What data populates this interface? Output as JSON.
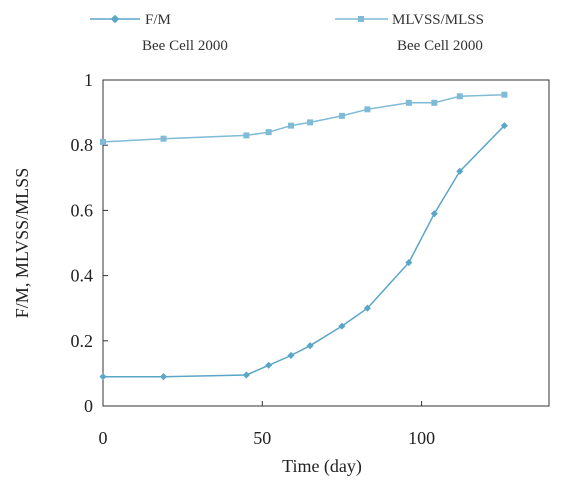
{
  "chart_data": {
    "type": "line",
    "xlabel": "Time (day)",
    "ylabel": "F/M, MLVSS/MLSS",
    "xlim": [
      0,
      140
    ],
    "ylim": [
      0,
      1
    ],
    "xticks": [
      "0",
      "50",
      "100"
    ],
    "yticks": [
      "0",
      "0.2",
      "0.4",
      "0.6",
      "0.8",
      "1"
    ],
    "grid": false,
    "legend_position": "top",
    "series": [
      {
        "name": "F/M",
        "subname": "Bee Cell 2000",
        "marker": "diamond",
        "color": "#5aa5c8",
        "x": [
          0,
          19,
          45,
          52,
          59,
          65,
          75,
          83,
          96,
          104,
          112,
          126
        ],
        "y": [
          0.09,
          0.09,
          0.095,
          0.125,
          0.155,
          0.185,
          0.245,
          0.3,
          0.44,
          0.59,
          0.72,
          0.86
        ]
      },
      {
        "name": "MLVSS/MLSS",
        "subname": "Bee Cell 2000",
        "marker": "square",
        "color": "#7fbad6",
        "x": [
          0,
          19,
          45,
          52,
          59,
          65,
          75,
          83,
          96,
          104,
          112,
          126
        ],
        "y": [
          0.81,
          0.82,
          0.83,
          0.84,
          0.86,
          0.87,
          0.89,
          0.91,
          0.93,
          0.93,
          0.95,
          0.955
        ]
      }
    ]
  }
}
